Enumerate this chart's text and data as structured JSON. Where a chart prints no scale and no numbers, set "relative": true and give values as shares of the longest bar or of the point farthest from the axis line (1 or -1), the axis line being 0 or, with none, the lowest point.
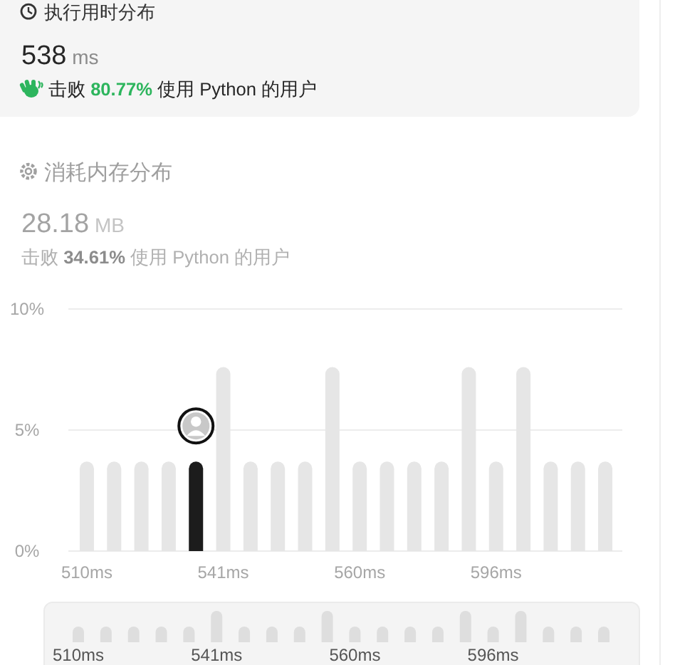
{
  "chart_data": [
    {
      "type": "other",
      "title": "执行用时分布",
      "annotations": [
        "538 ms",
        "击败 80.77% 使用 Python 的用户"
      ]
    },
    {
      "type": "other",
      "title": "消耗内存分布",
      "annotations": [
        "28.18 MB",
        "击败 34.61% 使用 Python 的用户"
      ]
    },
    {
      "type": "bar",
      "categories": [
        "510ms",
        null,
        null,
        null,
        null,
        "541ms",
        null,
        null,
        null,
        null,
        "560ms",
        null,
        null,
        null,
        null,
        "596ms",
        null,
        null,
        null,
        null
      ],
      "values": [
        3.7,
        3.7,
        3.7,
        3.7,
        3.7,
        7.6,
        3.7,
        3.7,
        3.7,
        7.6,
        3.7,
        3.7,
        3.7,
        3.7,
        7.6,
        3.7,
        7.6,
        3.7,
        3.7,
        3.7
      ],
      "colors": [
        "#e6e6e6",
        "#e6e6e6",
        "#e6e6e6",
        "#e6e6e6",
        "#1c1c1c",
        "#e6e6e6",
        "#e6e6e6",
        "#e6e6e6",
        "#e6e6e6",
        "#e6e6e6",
        "#e6e6e6",
        "#e6e6e6",
        "#e6e6e6",
        "#e6e6e6",
        "#e6e6e6",
        "#e6e6e6",
        "#e6e6e6",
        "#e6e6e6",
        "#e6e6e6",
        "#e6e6e6"
      ],
      "ylim": [
        0,
        10
      ],
      "yticks": [
        {
          "value": 0,
          "label": "0%"
        },
        {
          "value": 5,
          "label": "5%"
        },
        {
          "value": 10,
          "label": "10%"
        }
      ],
      "grid": "y"
    },
    {
      "type": "bar",
      "relative": true,
      "categories": [
        "510ms",
        null,
        null,
        null,
        null,
        "541ms",
        null,
        null,
        null,
        null,
        "560ms",
        null,
        null,
        null,
        null,
        "596ms",
        null,
        null,
        null,
        null
      ],
      "values": [
        0.5,
        0.5,
        0.5,
        0.5,
        0.5,
        1,
        0.5,
        0.5,
        0.5,
        1,
        0.5,
        0.5,
        0.5,
        0.5,
        1,
        0.5,
        1,
        0.5,
        0.5,
        0.5
      ],
      "colors": [
        "#dedede",
        "#dedede",
        "#dedede",
        "#dedede",
        "#dedede",
        "#dedede",
        "#dedede",
        "#dedede",
        "#dedede",
        "#dedede",
        "#dedede",
        "#dedede",
        "#dedede",
        "#dedede",
        "#dedede",
        "#dedede",
        "#dedede",
        "#dedede",
        "#dedede",
        "#dedede"
      ]
    }
  ]
}
